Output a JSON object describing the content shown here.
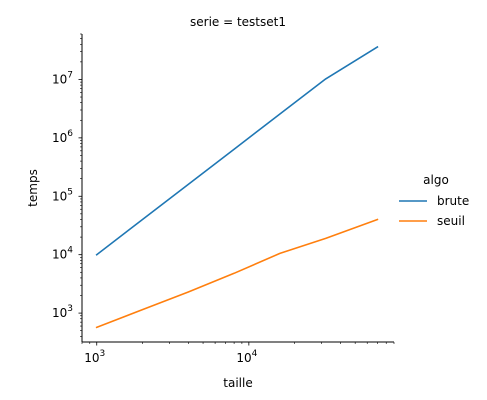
{
  "chart_data": {
    "type": "line",
    "facet_title": "serie = testset1",
    "xlabel": "taille",
    "ylabel": "temps",
    "x_scale": "log",
    "y_scale": "log",
    "xlim": [
      800,
      90000
    ],
    "ylim": [
      320,
      60000000
    ],
    "x_ticks": [
      {
        "value": 1000,
        "base": "10",
        "exp": "3"
      },
      {
        "value": 10000,
        "base": "10",
        "exp": "4"
      }
    ],
    "y_ticks": [
      {
        "value": 1000,
        "base": "10",
        "exp": "3"
      },
      {
        "value": 10000,
        "base": "10",
        "exp": "4"
      },
      {
        "value": 100000,
        "base": "10",
        "exp": "5"
      },
      {
        "value": 1000000,
        "base": "10",
        "exp": "6"
      },
      {
        "value": 10000000,
        "base": "10",
        "exp": "7"
      }
    ],
    "grid": false,
    "legend": {
      "title": "algo",
      "placement": "right"
    },
    "series": [
      {
        "name": "brute",
        "color": "#1f77b4",
        "x": [
          1000,
          2000,
          4000,
          8000,
          16000,
          32000,
          70000
        ],
        "y": [
          10000,
          40000,
          160000,
          640000,
          2560000,
          10240000,
          36000000
        ]
      },
      {
        "name": "seuil",
        "color": "#ff7f0e",
        "x": [
          1000,
          2000,
          4000,
          8000,
          16000,
          32000,
          70000
        ],
        "y": [
          570,
          1150,
          2300,
          4800,
          10500,
          19000,
          40000
        ]
      }
    ]
  }
}
